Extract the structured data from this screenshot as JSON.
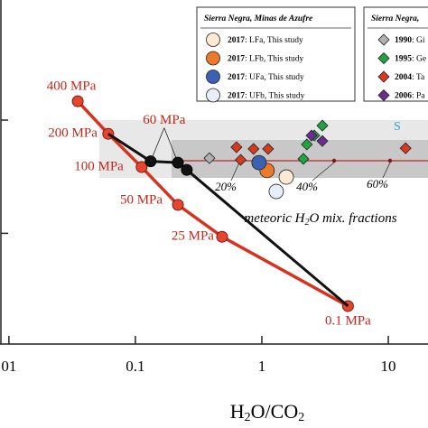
{
  "chart_data": {
    "type": "line",
    "xlabel": [
      "H",
      "2",
      "O/CO",
      "2"
    ],
    "log_x": true,
    "xlim": [
      0.0085,
      20.6
    ],
    "xticks": [
      {
        "value": 0.01,
        "label": "01"
      },
      {
        "value": 0.1,
        "label": "0.1"
      },
      1,
      10
    ],
    "ylim": [
      0,
      100
    ],
    "yticks": [
      32,
      65
    ],
    "legend_titles": [
      "Sierra Negra, Minas de Azufre",
      "Sierra Negra,"
    ],
    "mix_label": [
      "meteoric H",
      "2",
      "O mix. fractions"
    ],
    "fractions": [
      "20%",
      "40%",
      "60%"
    ],
    "side_label": "S",
    "series": [
      {
        "type": "line",
        "color": "#d8321f",
        "markers": "all",
        "x": [
          0.035,
          0.061,
          0.112,
          0.217,
          0.485,
          4.8
        ],
        "values": [
          70.5,
          61,
          51.3,
          40.3,
          31,
          10.8
        ],
        "labels": [
          "400 MPa",
          "200 MPa",
          "100 MPa",
          "50 MPa",
          "25 MPa",
          "0.1 MPa"
        ]
      },
      {
        "type": "line",
        "color": "#111111",
        "markers": "inner",
        "x": [
          0.061,
          0.132,
          0.217,
          0.255,
          4.8
        ],
        "values": [
          61,
          53,
          52.6,
          50.5,
          10.8
        ],
        "labels": [
          null,
          "60 MPa",
          null,
          null,
          null
        ]
      },
      {
        "type": "scatter",
        "marker": "circle",
        "name": "2017: LFa, This study",
        "color": "#fbe9d6",
        "x": [
          1.56
        ],
        "values": [
          48.4
        ]
      },
      {
        "type": "scatter",
        "marker": "circle",
        "name": "2017: LFb, This study",
        "color": "#ec7a2a",
        "x": [
          1.1
        ],
        "values": [
          50.3
        ]
      },
      {
        "type": "scatter",
        "marker": "circle",
        "name": "2017: UFa, This study",
        "color": "#3b62b0",
        "x": [
          0.95
        ],
        "values": [
          52.6
        ]
      },
      {
        "type": "scatter",
        "marker": "circle",
        "name": "2017: UFb, This study",
        "color": "#e6eef8",
        "x": [
          1.3
        ],
        "values": [
          44.2
        ]
      },
      {
        "type": "scatter",
        "marker": "diamond",
        "name": "1990: Gi",
        "color": "#b0b0b0",
        "x": [
          0.385
        ],
        "values": [
          53.9
        ]
      },
      {
        "type": "scatter",
        "marker": "diamond",
        "name": "1995: Ge",
        "color": "#1fa540",
        "x": [
          3.01,
          2.6,
          2.27,
          2.13
        ],
        "values": [
          63.4,
          60.5,
          57.9,
          53.7
        ]
      },
      {
        "type": "scatter",
        "marker": "diamond",
        "name": "2004: Ta",
        "color": "#d93a1f",
        "x": [
          0.63,
          0.68,
          0.86,
          1.12,
          13.7
        ],
        "values": [
          57.1,
          53.4,
          56.6,
          56.6,
          56.8
        ]
      },
      {
        "type": "scatter",
        "marker": "diamond",
        "name": "2006: Pa",
        "color": "#6a2c91",
        "x": [
          2.47,
          3.01
        ],
        "values": [
          60.5,
          58.9
        ]
      }
    ]
  }
}
